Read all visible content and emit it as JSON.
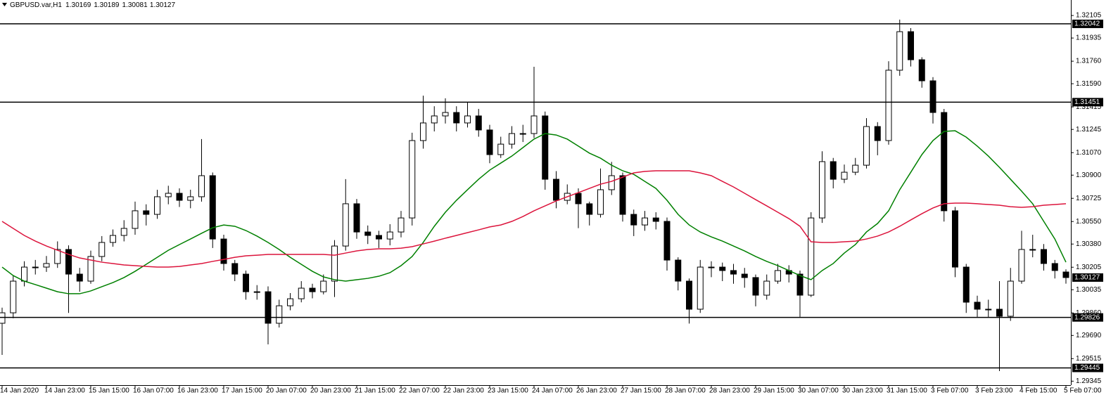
{
  "chart_data": {
    "type": "candlestick",
    "title": "GBPUSD.var,H1",
    "categories": [
      "14 Jan 2020",
      null,
      null,
      null,
      "14 Jan 23:00",
      null,
      null,
      null,
      "15 Jan 15:00",
      null,
      null,
      null,
      "16 Jan 07:00",
      null,
      null,
      null,
      "16 Jan 23:00",
      null,
      null,
      null,
      "17 Jan 15:00",
      null,
      null,
      null,
      "20 Jan 07:00",
      null,
      null,
      null,
      "20 Jan 23:00",
      null,
      null,
      null,
      "21 Jan 15:00",
      null,
      null,
      null,
      "22 Jan 07:00",
      null,
      null,
      null,
      "22 Jan 23:00",
      null,
      null,
      null,
      "23 Jan 15:00",
      null,
      null,
      null,
      "24 Jan 07:00",
      null,
      null,
      null,
      "26 Jan 23:00",
      null,
      null,
      null,
      "27 Jan 15:00",
      null,
      null,
      null,
      "28 Jan 07:00",
      null,
      null,
      null,
      "28 Jan 23:00",
      null,
      null,
      null,
      "29 Jan 15:00",
      null,
      null,
      null,
      "30 Jan 07:00",
      null,
      null,
      null,
      "30 Jan 23:00",
      null,
      null,
      null,
      "31 Jan 15:00",
      null,
      null,
      null,
      "3 Feb 07:00",
      null,
      null,
      null,
      "3 Feb 23:00",
      null,
      null,
      null,
      "4 Feb 15:00",
      null,
      null,
      null,
      "5 Feb 07:00"
    ],
    "open": [
      1.29782,
      1.29861,
      1.301,
      1.30206,
      1.30206,
      1.30233,
      1.30339,
      1.30153,
      1.301,
      1.30286,
      1.30392,
      1.30445,
      1.30498,
      1.30631,
      1.30604,
      1.30737,
      1.30763,
      1.3071,
      1.30737,
      1.30896,
      1.30418,
      1.30233,
      1.30153,
      1.3002,
      1.3002,
      1.29782,
      1.29914,
      1.29967,
      1.30047,
      1.3002,
      1.301,
      1.30365,
      1.30684,
      1.30471,
      1.30445,
      1.30418,
      1.30471,
      1.30577,
      1.31161,
      1.31294,
      1.31347,
      1.31373,
      1.31294,
      1.31347,
      1.31241,
      1.31055,
      1.31134,
      1.31214,
      1.31214,
      1.31347,
      1.30869,
      1.3071,
      1.30763,
      1.30684,
      1.30604,
      1.3079,
      1.30896,
      1.30604,
      1.30524,
      1.30577,
      1.30551,
      1.30259,
      1.301,
      1.29888,
      1.30206,
      1.30206,
      1.3018,
      1.30153,
      1.30127,
      1.29994,
      1.301,
      1.3018,
      1.30153,
      1.29994,
      1.30577,
      1.31002,
      1.30869,
      1.30922,
      1.30975,
      1.31267,
      1.31161,
      1.31692,
      1.31983,
      1.31771,
      1.31612,
      1.31373,
      1.30631,
      1.30206,
      1.29941,
      1.29888,
      1.29888,
      1.29835,
      1.301,
      1.30339,
      1.30339,
      1.30233,
      1.30169
    ],
    "high": [
      1.299,
      1.3014,
      1.3025,
      1.3026,
      1.3029,
      1.304,
      1.3037,
      1.302,
      1.3033,
      1.3044,
      1.3049,
      1.3056,
      1.307,
      1.3068,
      1.3079,
      1.3082,
      1.308,
      1.3079,
      1.31172,
      1.3092,
      1.3045,
      1.3026,
      1.3018,
      1.3007,
      1.3006,
      1.2996,
      1.3001,
      1.301,
      1.3008,
      1.3015,
      1.3041,
      1.3087,
      1.3072,
      1.3052,
      1.3048,
      1.3053,
      1.3063,
      1.3122,
      1.315,
      1.3142,
      1.3148,
      1.3142,
      1.31451,
      1.314,
      1.3128,
      1.3119,
      1.3127,
      1.3128,
      1.31718,
      1.3138,
      1.3093,
      1.3083,
      1.308,
      1.307,
      1.3095,
      1.31,
      1.3092,
      1.3064,
      1.3063,
      1.3062,
      1.3058,
      1.3028,
      1.3012,
      1.3026,
      1.3025,
      1.3024,
      1.3023,
      1.302,
      1.3015,
      1.3015,
      1.3023,
      1.3022,
      1.3018,
      1.3062,
      1.3108,
      1.3103,
      1.3098,
      1.3103,
      1.3133,
      1.313,
      1.3176,
      1.32074,
      1.3201,
      1.3179,
      1.3164,
      1.314,
      1.3066,
      1.3023,
      1.2999,
      1.2996,
      1.301,
      1.302,
      1.3048,
      1.3045,
      1.3038,
      1.3026,
      1.30189
    ],
    "low": [
      1.29543,
      1.2982,
      1.3006,
      1.3015,
      1.3017,
      1.302,
      1.2986,
      1.3002,
      1.3008,
      1.3025,
      1.3036,
      1.304,
      1.3045,
      1.3052,
      1.3057,
      1.3068,
      1.3066,
      1.3065,
      1.307,
      1.3035,
      1.3018,
      1.301,
      1.2996,
      1.2996,
      1.29623,
      1.2975,
      1.2988,
      1.2994,
      1.2997,
      1.3,
      1.2998,
      1.3033,
      1.3042,
      1.3038,
      1.3035,
      1.3037,
      1.3043,
      1.3052,
      1.311,
      1.3123,
      1.3129,
      1.3123,
      1.3126,
      1.3119,
      1.3099,
      1.3103,
      1.311,
      1.3115,
      1.3118,
      1.3079,
      1.3065,
      1.3068,
      1.305,
      1.3052,
      1.3058,
      1.3075,
      1.3055,
      1.3044,
      1.3048,
      1.3049,
      1.3018,
      1.3003,
      1.2978,
      1.2986,
      1.3013,
      1.301,
      1.3008,
      1.3005,
      1.2991,
      1.2996,
      1.3008,
      1.3009,
      1.2983,
      1.2998,
      1.3054,
      1.308,
      1.3084,
      1.309,
      1.3095,
      1.3105,
      1.3113,
      1.3165,
      1.3172,
      1.3156,
      1.3129,
      1.3055,
      1.3013,
      1.2986,
      1.2983,
      1.2983,
      1.29421,
      1.298,
      1.3008,
      1.3028,
      1.3018,
      1.3012,
      1.30081
    ],
    "close": [
      1.29861,
      1.301,
      1.30206,
      1.30206,
      1.30233,
      1.30339,
      1.30153,
      1.301,
      1.30286,
      1.30392,
      1.30445,
      1.30498,
      1.30631,
      1.30604,
      1.30737,
      1.30763,
      1.3071,
      1.30737,
      1.30896,
      1.30418,
      1.30233,
      1.30153,
      1.3002,
      1.3002,
      1.29782,
      1.29914,
      1.29967,
      1.30047,
      1.3002,
      1.301,
      1.30365,
      1.30684,
      1.30471,
      1.30445,
      1.30418,
      1.30471,
      1.30577,
      1.31161,
      1.31294,
      1.31347,
      1.31373,
      1.31294,
      1.31347,
      1.31241,
      1.31055,
      1.31134,
      1.31214,
      1.31214,
      1.31347,
      1.30869,
      1.3071,
      1.30763,
      1.30684,
      1.30604,
      1.3079,
      1.30896,
      1.30604,
      1.30524,
      1.30577,
      1.30551,
      1.30259,
      1.301,
      1.29888,
      1.30206,
      1.30206,
      1.3018,
      1.30153,
      1.30127,
      1.29994,
      1.301,
      1.3018,
      1.30153,
      1.29994,
      1.30577,
      1.31002,
      1.30869,
      1.30922,
      1.30975,
      1.31267,
      1.31161,
      1.31692,
      1.31983,
      1.31771,
      1.31612,
      1.31373,
      1.30631,
      1.30206,
      1.29941,
      1.29888,
      1.29888,
      1.29835,
      1.301,
      1.30339,
      1.30339,
      1.30233,
      1.3018,
      1.30127
    ],
    "up_color": "#ffffff",
    "down_color": "#000000",
    "wick_color": "#000000",
    "ma_lines": [
      {
        "color": "#008000",
        "values": [
          1.30206,
          1.30142,
          1.301,
          1.30074,
          1.30047,
          1.3002,
          1.30005,
          1.30005,
          1.30026,
          1.30058,
          1.30089,
          1.30127,
          1.30174,
          1.30227,
          1.3028,
          1.30333,
          1.30376,
          1.30418,
          1.30461,
          1.30503,
          1.30524,
          1.30514,
          1.30482,
          1.3044,
          1.30392,
          1.30339,
          1.3028,
          1.30227,
          1.30174,
          1.30132,
          1.30111,
          1.301,
          1.30111,
          1.30121,
          1.30137,
          1.30164,
          1.30217,
          1.30286,
          1.30392,
          1.30514,
          1.3062,
          1.3071,
          1.3079,
          1.30869,
          1.30938,
          1.30991,
          1.31044,
          1.31108,
          1.31172,
          1.31214,
          1.31203,
          1.31172,
          1.31119,
          1.31066,
          1.31028,
          1.30975,
          1.30933,
          1.30906,
          1.30853,
          1.308,
          1.3071,
          1.30604,
          1.30524,
          1.30471,
          1.30434,
          1.30402,
          1.30365,
          1.30328,
          1.30286,
          1.30249,
          1.30217,
          1.3018,
          1.30142,
          1.30111,
          1.3018,
          1.30233,
          1.30312,
          1.30376,
          1.30471,
          1.30535,
          1.30631,
          1.3079,
          1.30922,
          1.31055,
          1.31161,
          1.3123,
          1.31235,
          1.31187,
          1.31119,
          1.31044,
          1.30959,
          1.30869,
          1.30779,
          1.30684,
          1.30551,
          1.30418,
          1.30243
        ]
      },
      {
        "color": "#dc143c",
        "values": [
          1.30551,
          1.30498,
          1.30445,
          1.30402,
          1.30365,
          1.30333,
          1.30302,
          1.30275,
          1.30259,
          1.30243,
          1.30233,
          1.30222,
          1.30217,
          1.30211,
          1.30206,
          1.30206,
          1.30211,
          1.30222,
          1.30233,
          1.30249,
          1.30264,
          1.3028,
          1.30291,
          1.30296,
          1.30302,
          1.30302,
          1.30302,
          1.30302,
          1.30302,
          1.30302,
          1.30296,
          1.30312,
          1.30328,
          1.30339,
          1.30344,
          1.30344,
          1.30349,
          1.3036,
          1.30381,
          1.30402,
          1.30424,
          1.30445,
          1.30466,
          1.30487,
          1.30509,
          1.30524,
          1.30551,
          1.30588,
          1.30631,
          1.30668,
          1.30705,
          1.30737,
          1.30768,
          1.308,
          1.30832,
          1.30853,
          1.30885,
          1.30917,
          1.30928,
          1.30933,
          1.30933,
          1.30933,
          1.30933,
          1.30917,
          1.30896,
          1.30853,
          1.30811,
          1.30763,
          1.30715,
          1.30668,
          1.3062,
          1.30572,
          1.30514,
          1.30397,
          1.30392,
          1.30392,
          1.30397,
          1.30402,
          1.30418,
          1.3044,
          1.30471,
          1.30514,
          1.30562,
          1.30609,
          1.30652,
          1.30684,
          1.30689,
          1.30689,
          1.30684,
          1.30678,
          1.30673,
          1.30662,
          1.30657,
          1.30662,
          1.30673,
          1.30678,
          1.30684
        ]
      }
    ],
    "levels": [
      1.32042,
      1.31451,
      1.29826,
      1.29445
    ],
    "ylim": [
      1.29315,
      1.32222
    ],
    "yticks": [
      1.32105,
      1.31935,
      {
        "value": 1.3176,
        "label": "1.31760"
      },
      {
        "value": 1.3159,
        "label": "1.31590"
      },
      1.31415,
      1.31245,
      {
        "value": 1.3107,
        "label": "1.31070"
      },
      {
        "value": 1.309,
        "label": "1.30900"
      },
      1.30725,
      {
        "value": 1.3055,
        "label": "1.30550"
      },
      {
        "value": 1.3038,
        "label": "1.30380"
      },
      1.30205,
      1.30035,
      {
        "value": 1.2986,
        "label": "1.29860"
      },
      {
        "value": 1.2969,
        "label": "1.29690"
      },
      1.29515,
      1.29345
    ]
  }
}
